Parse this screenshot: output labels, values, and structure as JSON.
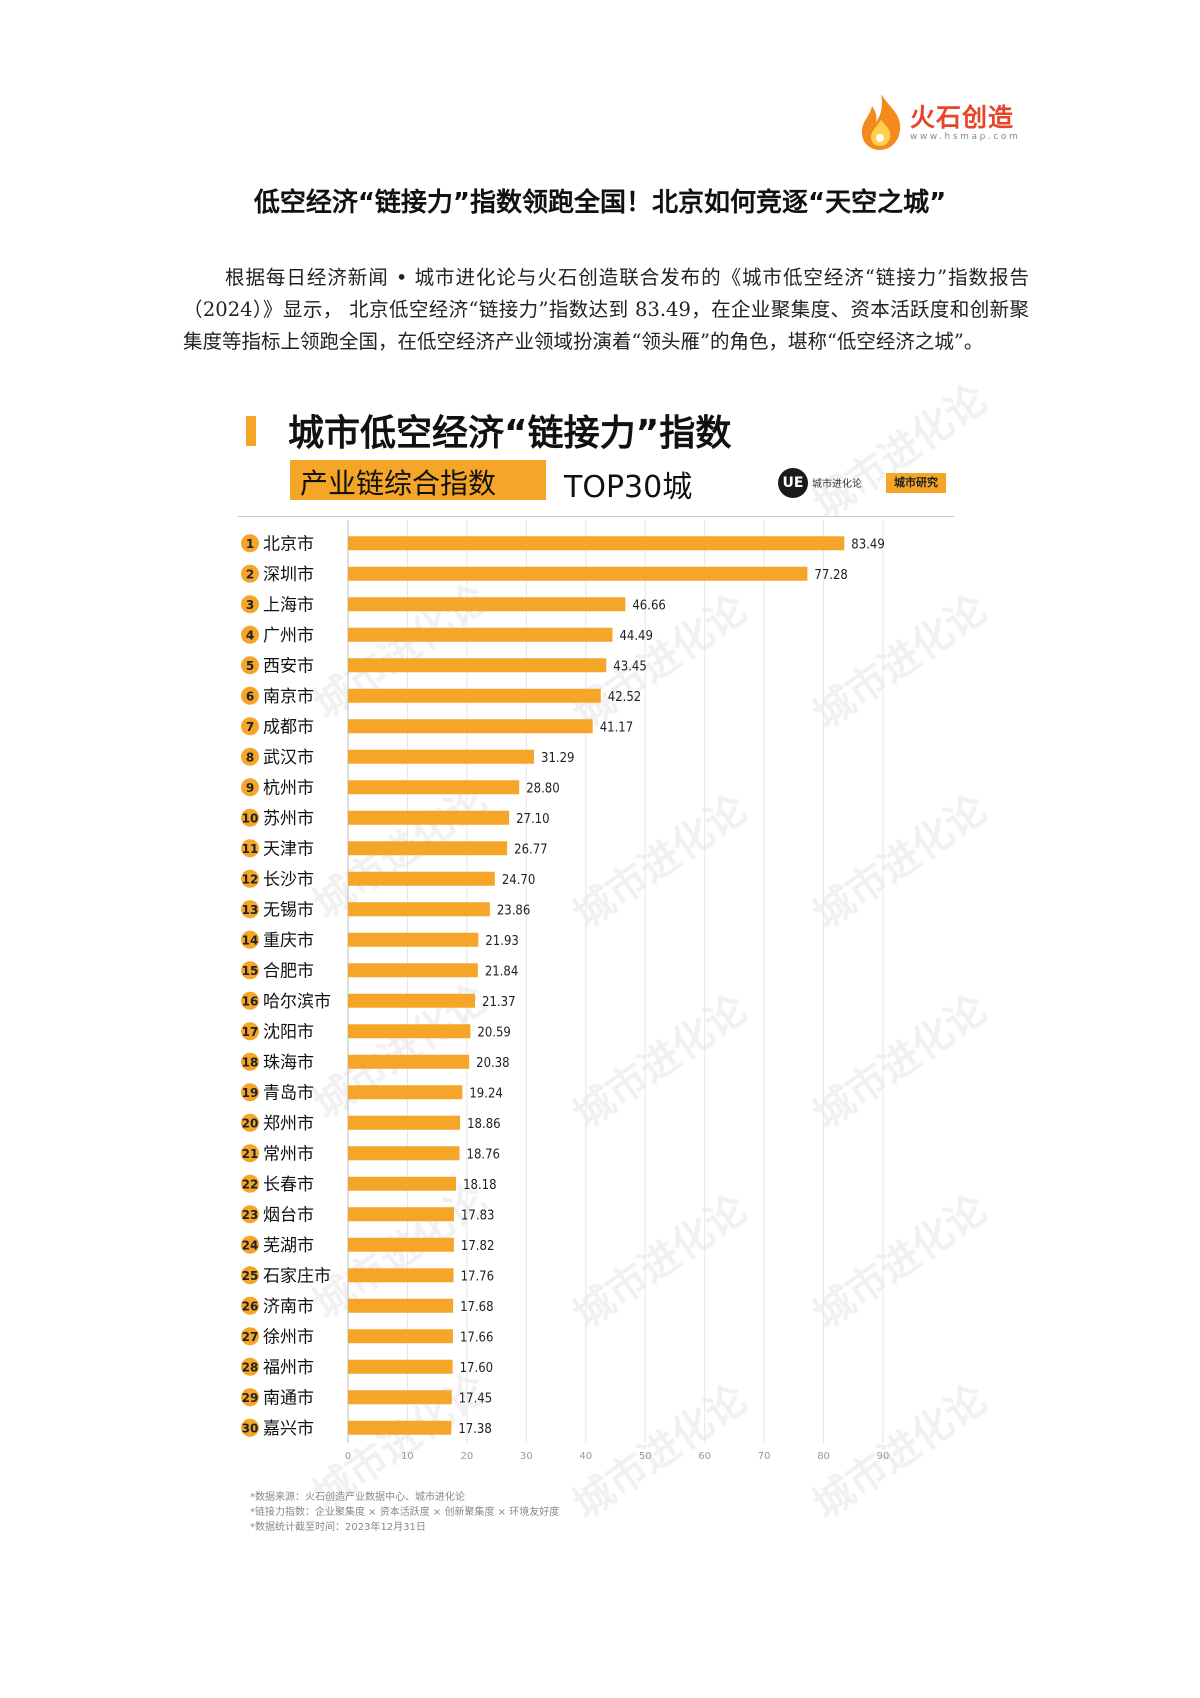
{
  "logo": {
    "name": "火石创造",
    "url": "www.hsmap.com",
    "flame_color": "#f28a1e",
    "text_color": "#e8442a"
  },
  "document": {
    "title": "低空经济“链接力”指数领跑全国！北京如何竞逐“天空之城”",
    "intro": "根据每日经济新闻 • 城市进化论与火石创造联合发布的《城市低空经济“链接力”指数报告（2024）》显示， 北京低空经济“链接力”指数达到 83.49，在企业聚集度、资本活跃度和创新聚集度等指标上领跑全国，在低空经济产业领域扮演着“领头雁”的角色，堪称“低空经济之城”。"
  },
  "infographic": {
    "title": "城市低空经济“链接力”指数",
    "subtitle_highlight": "产业链综合指数",
    "subtitle_rest": "TOP30城",
    "brand_mark": "UE",
    "brand_name": "城市进化论",
    "research_badge": "城市研究",
    "watermark": "城市进化论",
    "footnotes": [
      "*数据来源：火石创造产业数据中心、城市进化论",
      "*链接力指数：企业聚集度 × 资本活跃度 × 创新聚集度 × 环境友好度",
      "*数据统计截至时间：2023年12月31日"
    ],
    "accent_color": "#f5a628"
  },
  "chart_data": {
    "type": "bar",
    "orientation": "horizontal",
    "ranks": [
      "1",
      "2",
      "3",
      "4",
      "5",
      "6",
      "7",
      "8",
      "9",
      "10",
      "11",
      "12",
      "13",
      "14",
      "15",
      "16",
      "17",
      "18",
      "19",
      "20",
      "21",
      "22",
      "23",
      "24",
      "25",
      "26",
      "27",
      "28",
      "29",
      "30"
    ],
    "categories": [
      "北京市",
      "深圳市",
      "上海市",
      "广州市",
      "西安市",
      "南京市",
      "成都市",
      "武汉市",
      "杭州市",
      "苏州市",
      "天津市",
      "长沙市",
      "无锡市",
      "重庆市",
      "合肥市",
      "哈尔滨市",
      "沈阳市",
      "珠海市",
      "青岛市",
      "郑州市",
      "常州市",
      "长春市",
      "烟台市",
      "芜湖市",
      "石家庄市",
      "济南市",
      "徐州市",
      "福州市",
      "南通市",
      "嘉兴市"
    ],
    "values": [
      83.49,
      77.28,
      46.66,
      44.49,
      43.45,
      42.52,
      41.17,
      31.29,
      28.8,
      27.1,
      26.77,
      24.7,
      23.86,
      21.93,
      21.84,
      21.37,
      20.59,
      20.38,
      19.24,
      18.86,
      18.76,
      18.18,
      17.83,
      17.82,
      17.76,
      17.68,
      17.66,
      17.6,
      17.45,
      17.38
    ],
    "value_labels": [
      "83.49",
      "77.28",
      "46.66",
      "44.49",
      "43.45",
      "42.52",
      "41.17",
      "31.29",
      "28.80",
      "27.10",
      "26.77",
      "24.70",
      "23.86",
      "21.93",
      "21.84",
      "21.37",
      "20.59",
      "20.38",
      "19.24",
      "18.86",
      "18.76",
      "18.18",
      "17.83",
      "17.82",
      "17.76",
      "17.68",
      "17.66",
      "17.60",
      "17.45",
      "17.38"
    ],
    "xlim": [
      0,
      90
    ],
    "x_ticks": [
      "0",
      "10",
      "20",
      "30",
      "40",
      "50",
      "60",
      "70",
      "80",
      "90"
    ],
    "grid": true,
    "bar_color": "#f5a628"
  }
}
